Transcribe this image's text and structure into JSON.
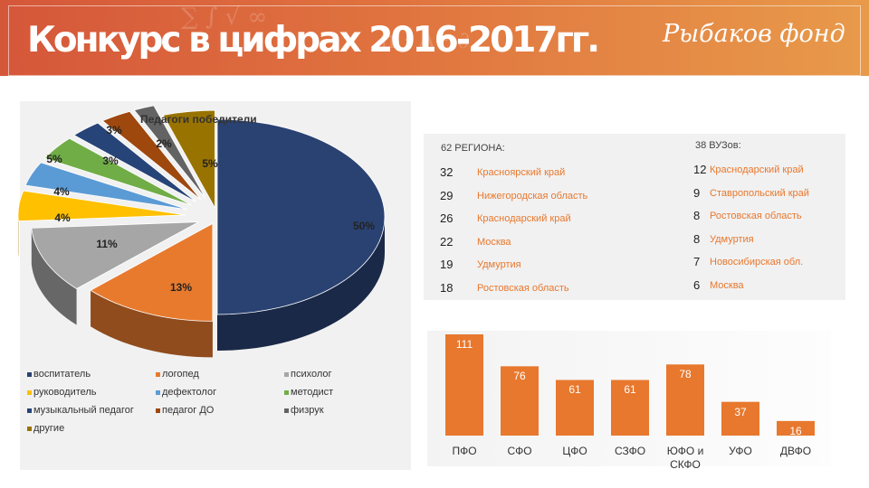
{
  "header": {
    "title": "Конкурс в цифрах 2016-2017гг.",
    "logo": "Рыбаков фонд"
  },
  "colors": {
    "banner": "#e0733f",
    "accent_orange": "#e8782e",
    "bar": "#e8782e"
  },
  "chart_data": [
    {
      "type": "pie",
      "title": "Педагоги победители",
      "categories": [
        "воспитатель",
        "логопед",
        "психолог",
        "руководитель",
        "дефектолог",
        "методист",
        "музыкальный педагог",
        "педагог ДО",
        "физрук",
        "другие"
      ],
      "values": [
        50,
        13,
        11,
        5,
        4,
        4,
        3,
        3,
        2,
        5
      ],
      "labels": [
        "50%",
        "13%",
        "11%",
        "5%",
        "4%",
        "4%",
        "3%",
        "3%",
        "2%",
        "5%"
      ],
      "colors": [
        "#2a4272",
        "#e87a2e",
        "#a6a6a6",
        "#ffc000",
        "#5b9bd5",
        "#70ad47",
        "#264478",
        "#9e480e",
        "#636363",
        "#997300"
      ],
      "legend_position": "bottom"
    },
    {
      "type": "bar",
      "categories": [
        "ПФО",
        "СФО",
        "ЦФО",
        "СЗФО",
        "ЮФО и СКФО",
        "УФО",
        "ДВФО"
      ],
      "values": [
        111,
        76,
        61,
        61,
        78,
        37,
        16
      ],
      "labels": [
        "111",
        "76",
        "61",
        "61",
        "78",
        "37",
        "16"
      ],
      "ylim": [
        0,
        120
      ]
    }
  ],
  "regions": {
    "title": "62 РЕГИОНА:",
    "rows": [
      {
        "num": "32",
        "name": "Красноярский край"
      },
      {
        "num": "29",
        "name": "Нижегородская область"
      },
      {
        "num": "26",
        "name": "Краснодарский край"
      },
      {
        "num": "22",
        "name": "Москва"
      },
      {
        "num": "19",
        "name": "Удмуртия"
      },
      {
        "num": "18",
        "name": "Ростовская область"
      }
    ]
  },
  "universities": {
    "title": "38 ВУЗов:",
    "rows": [
      {
        "num": "12",
        "name": "Краснодарский край"
      },
      {
        "num": "9",
        "name": "Ставропольский край"
      },
      {
        "num": "8",
        "name": "Ростовская область"
      },
      {
        "num": "8",
        "name": "Удмуртия"
      },
      {
        "num": "7",
        "name": "Новосибирская обл."
      },
      {
        "num": "6",
        "name": "Москва"
      }
    ]
  }
}
